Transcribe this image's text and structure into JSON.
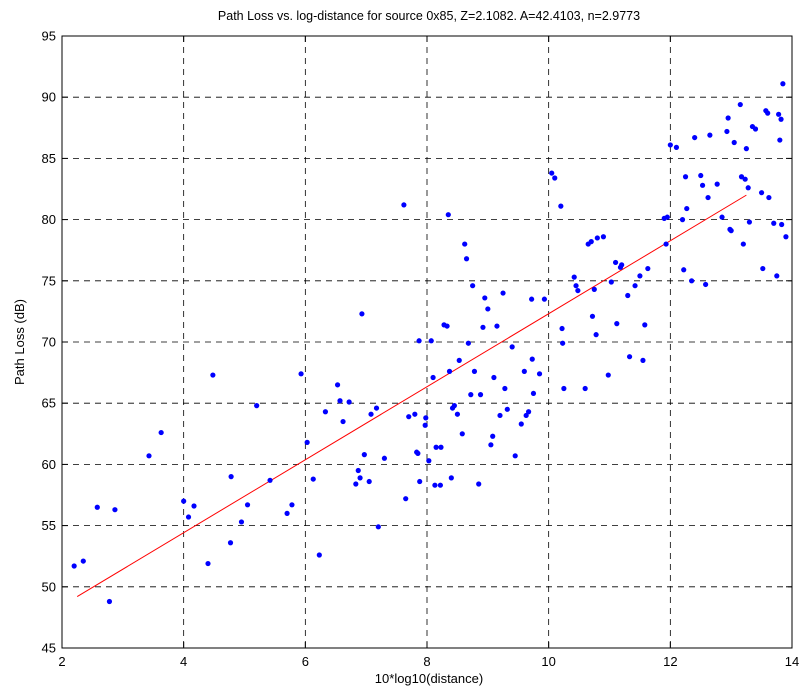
{
  "chart_data": {
    "type": "scatter",
    "title": "Path Loss vs. log-distance for source 0x85, Z=2.1082. A=42.4103, n=2.9773",
    "xlabel": "10*log10(distance)",
    "ylabel": "Path Loss (dB)",
    "xlim": [
      2,
      14
    ],
    "ylim": [
      45,
      95
    ],
    "xticks": [
      2,
      4,
      6,
      8,
      10,
      12,
      14
    ],
    "yticks": [
      45,
      50,
      55,
      60,
      65,
      70,
      75,
      80,
      85,
      90,
      95
    ],
    "grid": true,
    "colors": {
      "points": "#0000ff",
      "fit": "#ff0000",
      "grid": "#000000"
    },
    "series": [
      {
        "type": "scatter",
        "points": [
          [
            2.2,
            51.7
          ],
          [
            2.35,
            52.1
          ],
          [
            2.58,
            56.5
          ],
          [
            2.78,
            48.8
          ],
          [
            2.87,
            56.3
          ],
          [
            3.43,
            60.7
          ],
          [
            3.63,
            62.6
          ],
          [
            4.0,
            57.0
          ],
          [
            4.08,
            55.7
          ],
          [
            4.17,
            56.6
          ],
          [
            4.4,
            51.9
          ],
          [
            4.48,
            67.3
          ],
          [
            4.77,
            53.6
          ],
          [
            4.78,
            59.0
          ],
          [
            4.95,
            55.3
          ],
          [
            5.05,
            56.7
          ],
          [
            5.2,
            64.8
          ],
          [
            5.42,
            58.7
          ],
          [
            5.7,
            56.0
          ],
          [
            5.78,
            56.7
          ],
          [
            5.93,
            67.4
          ],
          [
            6.03,
            61.8
          ],
          [
            6.13,
            58.8
          ],
          [
            6.23,
            52.6
          ],
          [
            6.33,
            64.3
          ],
          [
            6.53,
            66.5
          ],
          [
            6.57,
            65.2
          ],
          [
            6.62,
            63.5
          ],
          [
            6.72,
            65.1
          ],
          [
            6.83,
            58.4
          ],
          [
            6.87,
            59.5
          ],
          [
            6.9,
            58.9
          ],
          [
            6.93,
            72.3
          ],
          [
            6.97,
            60.8
          ],
          [
            7.05,
            58.6
          ],
          [
            7.08,
            64.1
          ],
          [
            7.17,
            64.6
          ],
          [
            7.2,
            54.9
          ],
          [
            7.3,
            60.5
          ],
          [
            7.62,
            81.2
          ],
          [
            7.65,
            57.2
          ],
          [
            7.7,
            63.9
          ],
          [
            7.8,
            64.1
          ],
          [
            7.83,
            61.0
          ],
          [
            7.85,
            60.9
          ],
          [
            7.87,
            70.1
          ],
          [
            7.88,
            58.6
          ],
          [
            7.97,
            63.2
          ],
          [
            7.98,
            63.8
          ],
          [
            8.03,
            60.3
          ],
          [
            8.07,
            70.1
          ],
          [
            8.1,
            67.1
          ],
          [
            8.13,
            58.3
          ],
          [
            8.15,
            61.4
          ],
          [
            8.22,
            58.3
          ],
          [
            8.23,
            61.4
          ],
          [
            8.28,
            71.4
          ],
          [
            8.33,
            71.3
          ],
          [
            8.35,
            80.4
          ],
          [
            8.37,
            67.6
          ],
          [
            8.4,
            58.9
          ],
          [
            8.42,
            64.6
          ],
          [
            8.45,
            64.8
          ],
          [
            8.5,
            64.1
          ],
          [
            8.53,
            68.5
          ],
          [
            8.58,
            62.5
          ],
          [
            8.62,
            78.0
          ],
          [
            8.65,
            76.8
          ],
          [
            8.68,
            69.9
          ],
          [
            8.72,
            65.7
          ],
          [
            8.75,
            74.6
          ],
          [
            8.78,
            67.6
          ],
          [
            8.85,
            58.4
          ],
          [
            8.88,
            65.7
          ],
          [
            8.92,
            71.2
          ],
          [
            8.95,
            73.6
          ],
          [
            9.0,
            72.7
          ],
          [
            9.05,
            61.6
          ],
          [
            9.08,
            62.3
          ],
          [
            9.1,
            67.1
          ],
          [
            9.15,
            71.3
          ],
          [
            9.2,
            64.0
          ],
          [
            9.25,
            74.0
          ],
          [
            9.28,
            66.2
          ],
          [
            9.32,
            64.5
          ],
          [
            9.4,
            69.6
          ],
          [
            9.45,
            60.7
          ],
          [
            9.55,
            63.3
          ],
          [
            9.6,
            67.6
          ],
          [
            9.63,
            64.0
          ],
          [
            9.67,
            64.3
          ],
          [
            9.72,
            73.5
          ],
          [
            9.73,
            68.6
          ],
          [
            9.75,
            65.8
          ],
          [
            9.85,
            67.4
          ],
          [
            9.93,
            73.5
          ],
          [
            10.05,
            83.8
          ],
          [
            10.1,
            83.4
          ],
          [
            10.2,
            81.1
          ],
          [
            10.22,
            71.1
          ],
          [
            10.23,
            69.9
          ],
          [
            10.25,
            66.2
          ],
          [
            10.42,
            75.3
          ],
          [
            10.45,
            74.6
          ],
          [
            10.48,
            74.2
          ],
          [
            10.6,
            66.2
          ],
          [
            10.65,
            78.0
          ],
          [
            10.7,
            78.2
          ],
          [
            10.72,
            72.1
          ],
          [
            10.75,
            74.3
          ],
          [
            10.78,
            70.6
          ],
          [
            10.8,
            78.5
          ],
          [
            10.9,
            78.6
          ],
          [
            10.98,
            67.3
          ],
          [
            11.03,
            74.9
          ],
          [
            11.1,
            76.5
          ],
          [
            11.12,
            71.5
          ],
          [
            11.18,
            76.1
          ],
          [
            11.2,
            76.3
          ],
          [
            11.3,
            73.8
          ],
          [
            11.33,
            68.8
          ],
          [
            11.42,
            74.6
          ],
          [
            11.5,
            75.4
          ],
          [
            11.55,
            68.5
          ],
          [
            11.58,
            71.4
          ],
          [
            11.63,
            76.0
          ],
          [
            11.9,
            80.1
          ],
          [
            11.93,
            78.0
          ],
          [
            11.95,
            80.2
          ],
          [
            12.0,
            86.1
          ],
          [
            12.1,
            85.9
          ],
          [
            12.2,
            80.0
          ],
          [
            12.22,
            75.9
          ],
          [
            12.25,
            83.5
          ],
          [
            12.27,
            80.9
          ],
          [
            12.35,
            75.0
          ],
          [
            12.4,
            86.7
          ],
          [
            12.5,
            83.6
          ],
          [
            12.53,
            82.8
          ],
          [
            12.58,
            74.7
          ],
          [
            12.62,
            81.8
          ],
          [
            12.65,
            86.9
          ],
          [
            12.77,
            82.9
          ],
          [
            12.85,
            80.2
          ],
          [
            12.93,
            87.2
          ],
          [
            12.95,
            88.3
          ],
          [
            12.98,
            79.2
          ],
          [
            13.0,
            79.1
          ],
          [
            13.05,
            86.3
          ],
          [
            13.15,
            89.4
          ],
          [
            13.17,
            83.5
          ],
          [
            13.2,
            78.0
          ],
          [
            13.23,
            83.3
          ],
          [
            13.25,
            85.8
          ],
          [
            13.28,
            82.6
          ],
          [
            13.3,
            79.8
          ],
          [
            13.35,
            87.6
          ],
          [
            13.4,
            87.4
          ],
          [
            13.5,
            82.2
          ],
          [
            13.52,
            76.0
          ],
          [
            13.57,
            88.9
          ],
          [
            13.6,
            88.7
          ],
          [
            13.62,
            81.8
          ],
          [
            13.7,
            79.7
          ],
          [
            13.75,
            75.4
          ],
          [
            13.78,
            88.6
          ],
          [
            13.8,
            86.5
          ],
          [
            13.82,
            88.2
          ],
          [
            13.83,
            79.6
          ],
          [
            13.85,
            91.1
          ],
          [
            13.9,
            78.6
          ]
        ]
      },
      {
        "type": "line",
        "points": [
          [
            2.25,
            49.2
          ],
          [
            13.25,
            82.0
          ]
        ]
      }
    ]
  }
}
